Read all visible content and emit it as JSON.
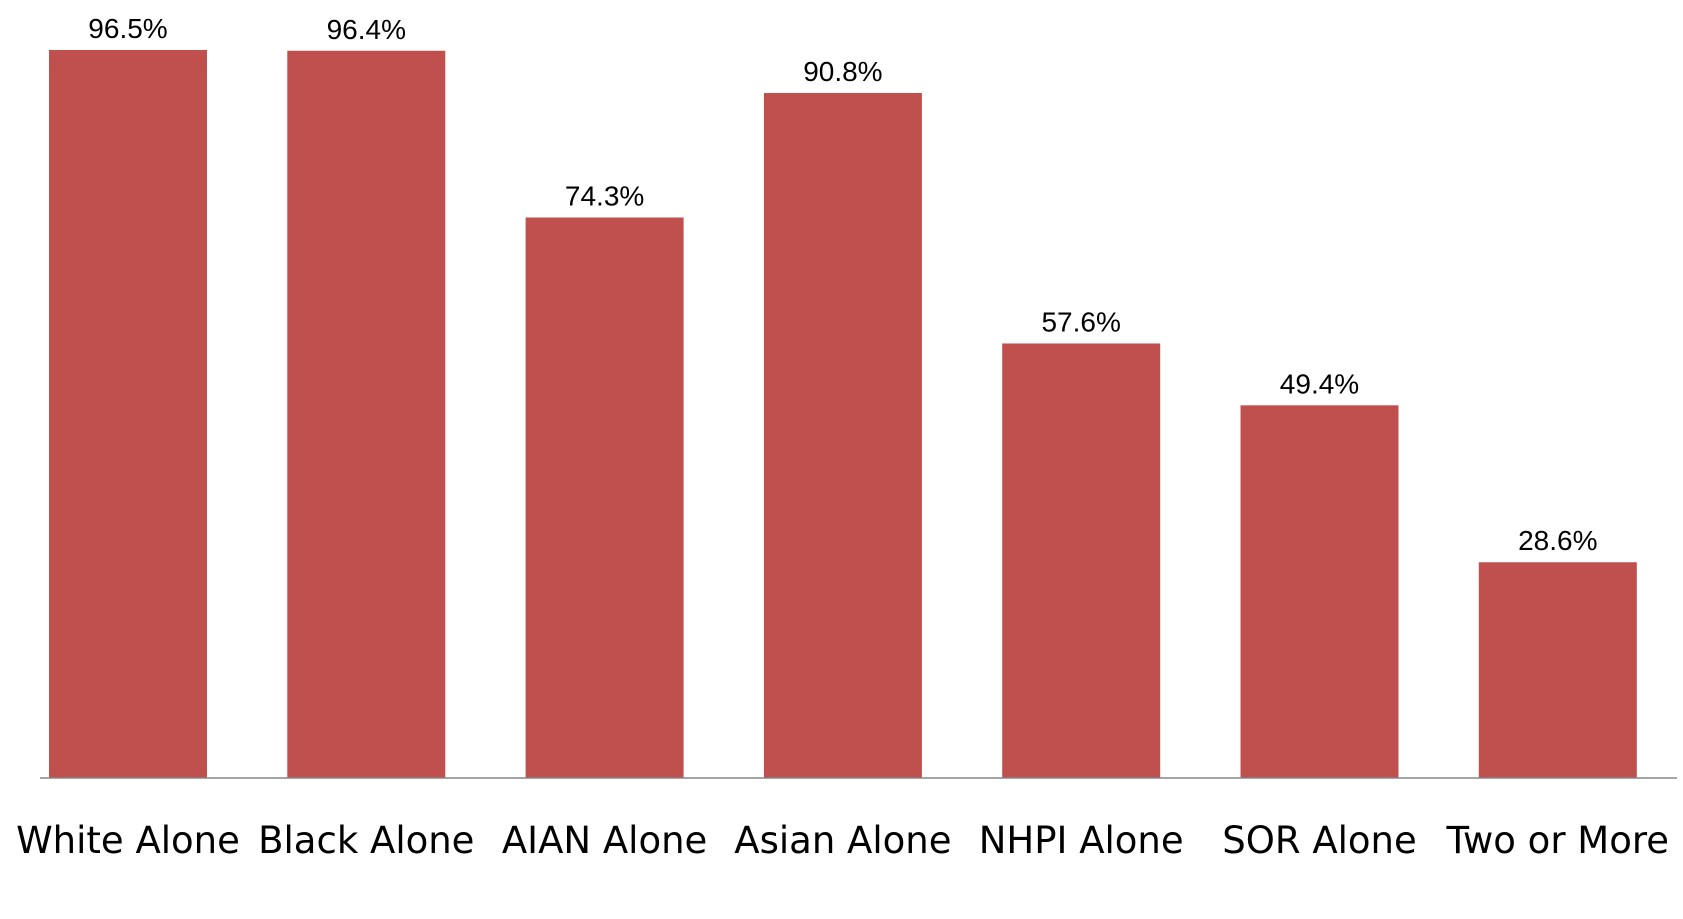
{
  "chart_data": {
    "type": "bar",
    "categories": [
      "White Alone",
      "Black Alone",
      "AIAN Alone",
      "Asian Alone",
      "NHPI Alone",
      "SOR Alone",
      "Two or More"
    ],
    "values": [
      96.5,
      96.4,
      74.3,
      90.8,
      57.6,
      49.4,
      28.6
    ],
    "value_labels": [
      "96.5%",
      "96.4%",
      "74.3%",
      "90.8%",
      "57.6%",
      "49.4%",
      "28.6%"
    ],
    "color": "#c0504d"
  }
}
